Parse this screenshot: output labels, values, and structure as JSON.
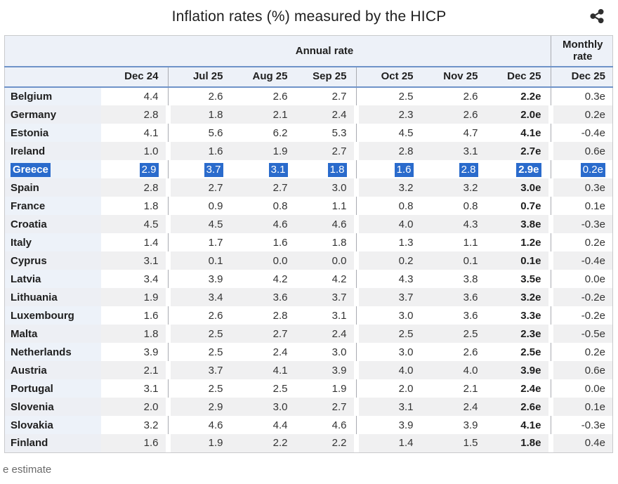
{
  "title": "Inflation rates (%) measured by the HICP",
  "share_button": {
    "label": "Share"
  },
  "footnote": "e estimate",
  "colors": {
    "selection_highlight": "#2a6bcc",
    "header_background": "#edf1f8",
    "header_rule_blue": "#6f93c9",
    "row_stripe": "#f0f0f1",
    "separator_line": "#a9abb1"
  },
  "table": {
    "group_headers": {
      "annual": "Annual rate",
      "monthly": "Monthly rate"
    },
    "months": [
      "Dec 24",
      "Jul 25",
      "Aug 25",
      "Sep 25",
      "Oct 25",
      "Nov 25",
      "Dec 25"
    ],
    "monthly_month": "Dec 25",
    "rows": [
      {
        "country": "Belgium",
        "values": [
          "4.4",
          "2.6",
          "2.6",
          "2.7",
          "2.5",
          "2.6",
          "2.2e"
        ],
        "monthly": "0.3e",
        "selected": false
      },
      {
        "country": "Germany",
        "values": [
          "2.8",
          "1.8",
          "2.1",
          "2.4",
          "2.3",
          "2.6",
          "2.0e"
        ],
        "monthly": "0.2e",
        "selected": false
      },
      {
        "country": "Estonia",
        "values": [
          "4.1",
          "5.6",
          "6.2",
          "5.3",
          "4.5",
          "4.7",
          "4.1e"
        ],
        "monthly": "-0.4e",
        "selected": false
      },
      {
        "country": "Ireland",
        "values": [
          "1.0",
          "1.6",
          "1.9",
          "2.7",
          "2.8",
          "3.1",
          "2.7e"
        ],
        "monthly": "0.6e",
        "selected": false
      },
      {
        "country": "Greece",
        "values": [
          "2.9",
          "3.7",
          "3.1",
          "1.8",
          "1.6",
          "2.8",
          "2.9e"
        ],
        "monthly": "0.2e",
        "selected": true
      },
      {
        "country": "Spain",
        "values": [
          "2.8",
          "2.7",
          "2.7",
          "3.0",
          "3.2",
          "3.2",
          "3.0e"
        ],
        "monthly": "0.3e",
        "selected": false
      },
      {
        "country": "France",
        "values": [
          "1.8",
          "0.9",
          "0.8",
          "1.1",
          "0.8",
          "0.8",
          "0.7e"
        ],
        "monthly": "0.1e",
        "selected": false
      },
      {
        "country": "Croatia",
        "values": [
          "4.5",
          "4.5",
          "4.6",
          "4.6",
          "4.0",
          "4.3",
          "3.8e"
        ],
        "monthly": "-0.3e",
        "selected": false
      },
      {
        "country": "Italy",
        "values": [
          "1.4",
          "1.7",
          "1.6",
          "1.8",
          "1.3",
          "1.1",
          "1.2e"
        ],
        "monthly": "0.2e",
        "selected": false
      },
      {
        "country": "Cyprus",
        "values": [
          "3.1",
          "0.1",
          "0.0",
          "0.0",
          "0.2",
          "0.1",
          "0.1e"
        ],
        "monthly": "-0.4e",
        "selected": false
      },
      {
        "country": "Latvia",
        "values": [
          "3.4",
          "3.9",
          "4.2",
          "4.2",
          "4.3",
          "3.8",
          "3.5e"
        ],
        "monthly": "0.0e",
        "selected": false
      },
      {
        "country": "Lithuania",
        "values": [
          "1.9",
          "3.4",
          "3.6",
          "3.7",
          "3.7",
          "3.6",
          "3.2e"
        ],
        "monthly": "-0.2e",
        "selected": false
      },
      {
        "country": "Luxembourg",
        "values": [
          "1.6",
          "2.6",
          "2.8",
          "3.1",
          "3.0",
          "3.6",
          "3.3e"
        ],
        "monthly": "-0.2e",
        "selected": false
      },
      {
        "country": "Malta",
        "values": [
          "1.8",
          "2.5",
          "2.7",
          "2.4",
          "2.5",
          "2.5",
          "2.3e"
        ],
        "monthly": "-0.5e",
        "selected": false
      },
      {
        "country": "Netherlands",
        "values": [
          "3.9",
          "2.5",
          "2.4",
          "3.0",
          "3.0",
          "2.6",
          "2.5e"
        ],
        "monthly": "0.2e",
        "selected": false
      },
      {
        "country": "Austria",
        "values": [
          "2.1",
          "3.7",
          "4.1",
          "3.9",
          "4.0",
          "4.0",
          "3.9e"
        ],
        "monthly": "0.6e",
        "selected": false
      },
      {
        "country": "Portugal",
        "values": [
          "3.1",
          "2.5",
          "2.5",
          "1.9",
          "2.0",
          "2.1",
          "2.4e"
        ],
        "monthly": "0.0e",
        "selected": false
      },
      {
        "country": "Slovenia",
        "values": [
          "2.0",
          "2.9",
          "3.0",
          "2.7",
          "3.1",
          "2.4",
          "2.6e"
        ],
        "monthly": "0.1e",
        "selected": false
      },
      {
        "country": "Slovakia",
        "values": [
          "3.2",
          "4.6",
          "4.4",
          "4.6",
          "3.9",
          "3.9",
          "4.1e"
        ],
        "monthly": "-0.3e",
        "selected": false
      },
      {
        "country": "Finland",
        "values": [
          "1.6",
          "1.9",
          "2.2",
          "2.2",
          "1.4",
          "1.5",
          "1.8e"
        ],
        "monthly": "0.4e",
        "selected": false
      }
    ]
  }
}
